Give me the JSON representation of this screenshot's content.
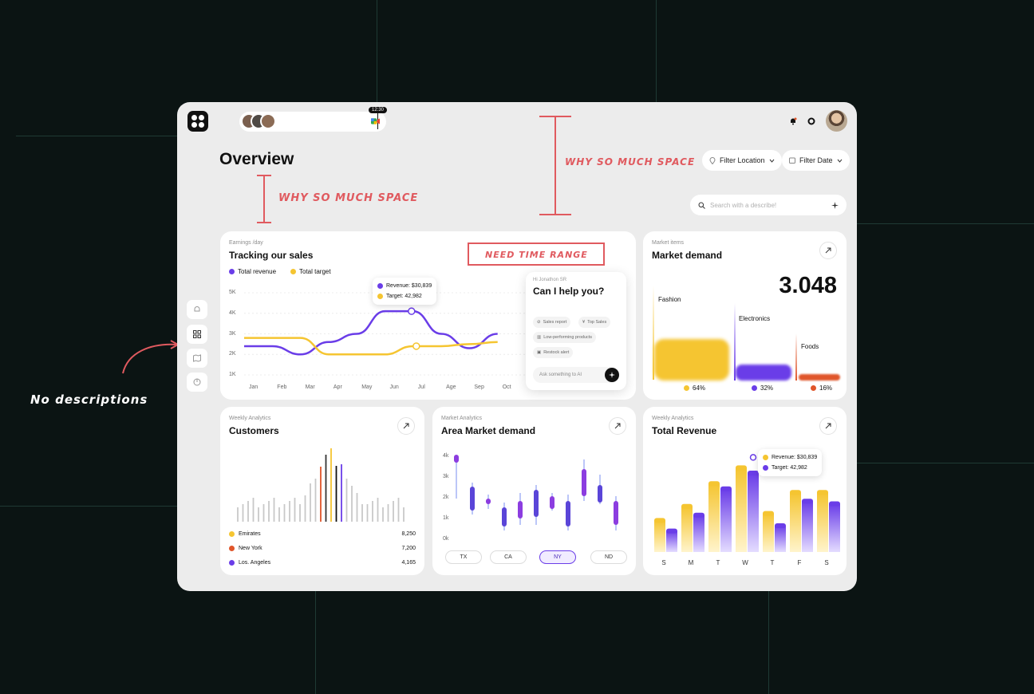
{
  "header": {
    "time_label": "12:30",
    "page_title": "Overview",
    "filter_location": "Filter Location",
    "filter_date": "Filter Date",
    "search_placeholder": "Search with a describe!"
  },
  "annotations": {
    "space_1": "WHY SO MUCH SPACE",
    "space_2": "WHY SO MUCH SPACE",
    "time_range": "NEED TIME RANGE",
    "no_descriptions": "No descriptions"
  },
  "colors": {
    "purple": "#6a3de8",
    "yellow": "#f5c531",
    "orange": "#e0552a",
    "annotation": "#e05a5f"
  },
  "sales_card": {
    "subtitle": "Earnings /day",
    "title": "Tracking our sales",
    "legend_revenue": "Total revenue",
    "legend_target": "Total target",
    "y_ticks": [
      "5K",
      "4K",
      "3K",
      "2K",
      "1K"
    ],
    "months": [
      "Jan",
      "Feb",
      "Mar",
      "Apr",
      "May",
      "Jun",
      "Jul",
      "Age",
      "Sep",
      "Oct"
    ],
    "tooltip_revenue": "Revenue: $30,839",
    "tooltip_target": "Target: 42,982"
  },
  "ai_panel": {
    "greeting": "Hi Jonathon SR",
    "question": "Can I help you?",
    "chips": [
      "Sales report",
      "Top Sales",
      "Low-performing products",
      "Restock alert"
    ],
    "input_placeholder": "Ask something to AI"
  },
  "market_card": {
    "subtitle": "Market items",
    "title": "Market demand",
    "value": "3.048",
    "labels": [
      "Fashion",
      "Electronics",
      "Foods"
    ],
    "percents": [
      "64%",
      "32%",
      "16%"
    ]
  },
  "customers_card": {
    "subtitle": "Weekly Analytics",
    "title": "Customers",
    "rows": [
      {
        "label": "Emirates",
        "value": "8,250"
      },
      {
        "label": "New York",
        "value": "7,200"
      },
      {
        "label": "Los. Angeles",
        "value": "4,165"
      }
    ]
  },
  "area_card": {
    "subtitle": "Market Analytics",
    "title": "Area Market demand",
    "y_ticks": [
      "4k",
      "3k",
      "2k",
      "1k",
      "0k"
    ],
    "states": [
      "TX",
      "CA",
      "NY",
      "ND"
    ],
    "selected_state": "NY"
  },
  "revenue_card": {
    "subtitle": "Weekly Analytics",
    "title": "Total Revenue",
    "days": [
      "S",
      "M",
      "T",
      "W",
      "T",
      "F",
      "S"
    ],
    "tooltip_revenue": "Revenue: $30,839",
    "tooltip_target": "Target: 42,982"
  },
  "chart_data": [
    {
      "type": "line",
      "title": "Tracking our sales",
      "categories": [
        "Jan",
        "Feb",
        "Mar",
        "Apr",
        "May",
        "Jun",
        "Jul",
        "Age",
        "Sep",
        "Oct"
      ],
      "series": [
        {
          "name": "Total revenue",
          "values": [
            2.4,
            2.4,
            2.0,
            2.6,
            3.0,
            4.1,
            4.1,
            3.0,
            2.3,
            3.0
          ]
        },
        {
          "name": "Total target",
          "values": [
            2.8,
            2.8,
            2.8,
            2.0,
            2.0,
            2.0,
            2.4,
            2.4,
            2.5,
            2.6
          ]
        }
      ],
      "ylim": [
        1,
        5
      ]
    },
    {
      "type": "bar",
      "title": "Market demand",
      "categories": [
        "Fashion",
        "Electronics",
        "Foods"
      ],
      "values": [
        64,
        32,
        16
      ]
    },
    {
      "type": "bar",
      "title": "Total Revenue",
      "categories": [
        "S",
        "M",
        "T",
        "W",
        "T",
        "F",
        "S"
      ],
      "series": [
        {
          "name": "Revenue",
          "values": [
            36,
            52,
            78,
            96,
            44,
            68,
            68
          ]
        },
        {
          "name": "Target",
          "values": [
            24,
            42,
            72,
            90,
            30,
            58,
            55
          ]
        }
      ]
    }
  ]
}
